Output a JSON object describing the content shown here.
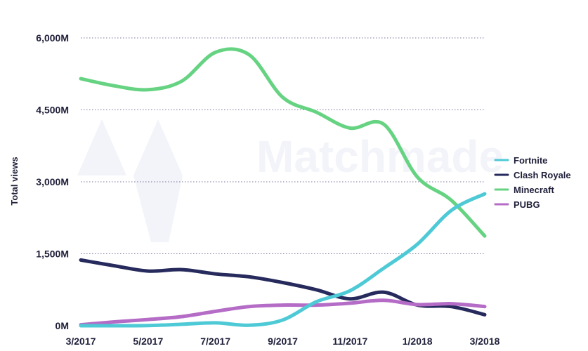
{
  "chart_data": {
    "type": "line",
    "title": "",
    "xlabel": "",
    "ylabel": "Total views",
    "ylim": [
      0,
      6000
    ],
    "y_ticks": [
      {
        "value": 0,
        "label": "0M"
      },
      {
        "value": 1500,
        "label": "1,500M"
      },
      {
        "value": 3000,
        "label": "3,000M"
      },
      {
        "value": 4500,
        "label": "4,500M"
      },
      {
        "value": 6000,
        "label": "6,000M"
      }
    ],
    "x_ticks": [
      "3/2017",
      "5/2017",
      "7/2017",
      "9/2017",
      "11/2017",
      "1/2018",
      "3/2018"
    ],
    "x": [
      "3/2017",
      "4/2017",
      "5/2017",
      "6/2017",
      "7/2017",
      "8/2017",
      "9/2017",
      "10/2017",
      "11/2017",
      "12/2017",
      "1/2018",
      "2/2018",
      "3/2018"
    ],
    "grid": true,
    "legend_position": "right",
    "watermark": "Matchmade",
    "series": [
      {
        "name": "Fortnite",
        "color": "#4ec9d6",
        "values": [
          0,
          0,
          5,
          30,
          60,
          10,
          120,
          500,
          730,
          1200,
          1700,
          2400,
          2750
        ]
      },
      {
        "name": "Clash Royale",
        "color": "#262a5c",
        "values": [
          1370,
          1250,
          1140,
          1170,
          1080,
          1020,
          900,
          750,
          560,
          700,
          430,
          400,
          230
        ]
      },
      {
        "name": "Minecraft",
        "color": "#66d382",
        "values": [
          5150,
          5000,
          4920,
          5100,
          5700,
          5650,
          4760,
          4450,
          4120,
          4200,
          3100,
          2620,
          1870
        ]
      },
      {
        "name": "PUBG",
        "color": "#b46cc6",
        "values": [
          20,
          80,
          130,
          190,
          300,
          400,
          430,
          430,
          470,
          530,
          440,
          460,
          400
        ]
      }
    ]
  }
}
